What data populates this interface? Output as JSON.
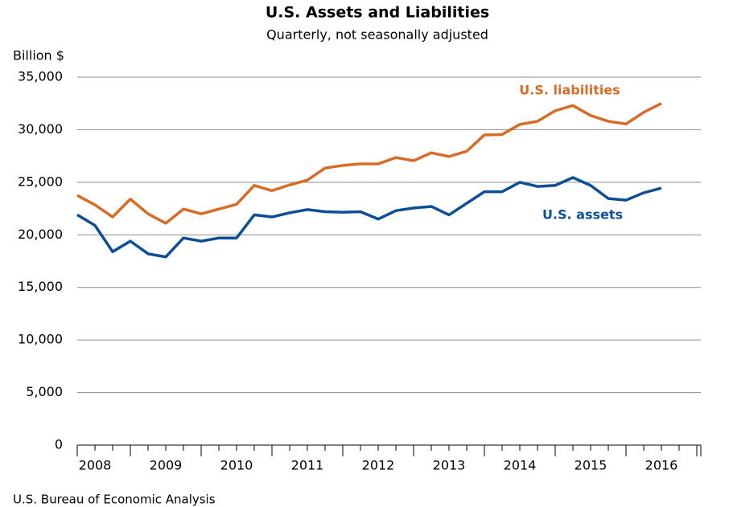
{
  "chart_data": {
    "type": "line",
    "title": "U.S. Assets and Liabilities",
    "subtitle": "Quarterly, not seasonally adjusted",
    "y_label": "Billion $",
    "source": "U.S. Bureau of Economic Analysis",
    "categories": [
      null,
      "2008",
      null,
      null,
      null,
      "2009",
      null,
      null,
      null,
      "2010",
      null,
      null,
      null,
      "2011",
      null,
      null,
      null,
      "2012",
      null,
      null,
      null,
      "2013",
      null,
      null,
      null,
      "2014",
      null,
      null,
      null,
      "2015",
      null,
      null,
      null,
      "2016"
    ],
    "series": [
      {
        "name": "U.S. liabilities",
        "color": "#d86b26",
        "values": [
          23750,
          22850,
          21700,
          23400,
          22000,
          21100,
          22450,
          22000,
          22450,
          22900,
          24700,
          24200,
          24750,
          25200,
          26350,
          26600,
          26750,
          26750,
          27350,
          27050,
          27800,
          27450,
          27950,
          29500,
          29550,
          30500,
          30800,
          31800,
          32300,
          31350,
          30800,
          30550,
          31650,
          32500
        ]
      },
      {
        "name": "U.S. assets",
        "color": "#0c4f96",
        "values": [
          21900,
          20900,
          18400,
          19400,
          18200,
          17900,
          19700,
          19400,
          19700,
          19700,
          21900,
          21700,
          22100,
          22400,
          22200,
          22150,
          22200,
          21500,
          22300,
          22550,
          22700,
          21900,
          23000,
          24100,
          24100,
          25000,
          24600,
          24700,
          25450,
          24700,
          23450,
          23300,
          24000,
          24450
        ]
      }
    ],
    "ylim": [
      0,
      35000
    ],
    "yticks": [
      0,
      {
        "value": 5000,
        "label": "5,000"
      },
      {
        "value": 10000,
        "label": "10,000"
      },
      {
        "value": 15000,
        "label": "15,000"
      },
      {
        "value": 20000,
        "label": "20,000"
      },
      {
        "value": 25000,
        "label": "25,000"
      },
      {
        "value": 30000,
        "label": "30,000"
      },
      {
        "value": 35000,
        "label": "35,000"
      }
    ],
    "grid": true
  }
}
